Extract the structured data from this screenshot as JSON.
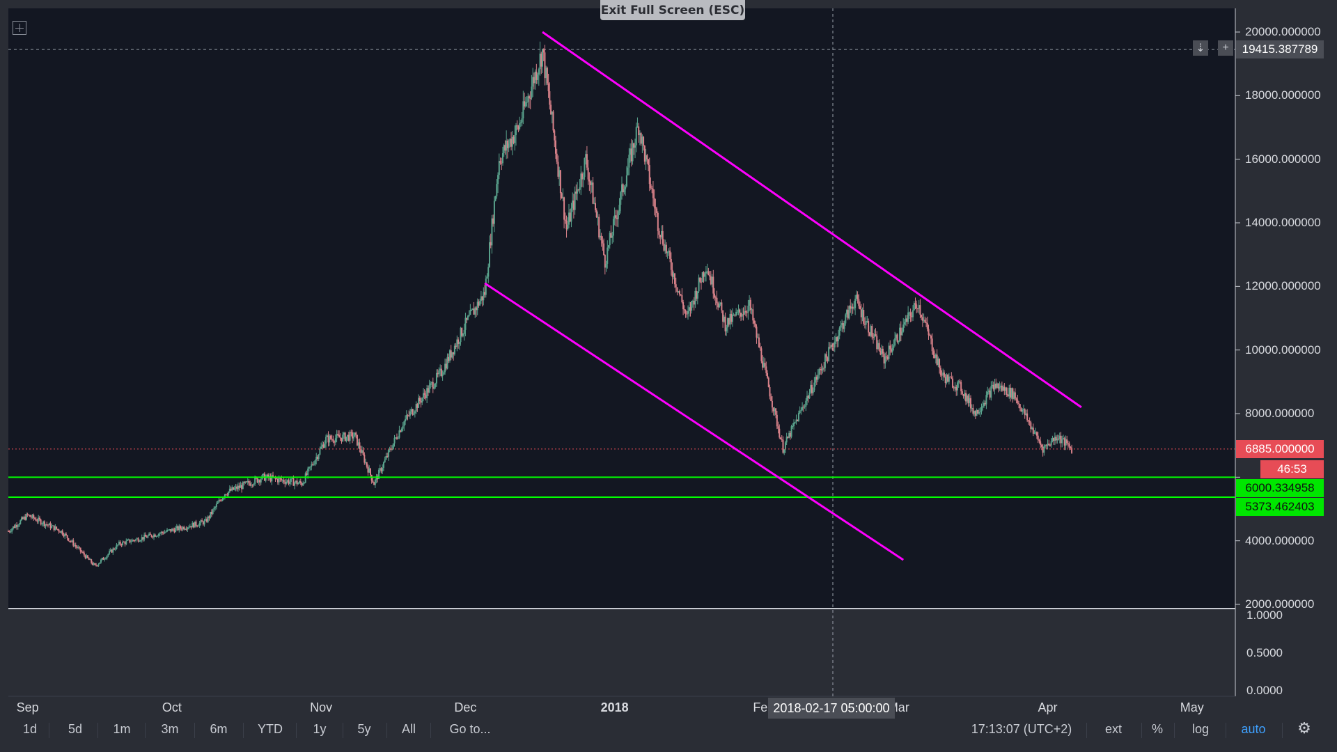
{
  "window": {
    "exit_fullscreen": "Exit Full Screen (ESC)"
  },
  "y_axis": {
    "ticks": [
      "20000.000000",
      "18000.000000",
      "16000.000000",
      "14000.000000",
      "12000.000000",
      "10000.000000",
      "8000.000000",
      "6000.000000",
      "4000.000000",
      "2000.000000"
    ]
  },
  "indicator_axis": {
    "ticks": [
      "1.0000",
      "0.5000",
      "0.0000"
    ]
  },
  "x_axis": {
    "ticks": [
      "Sep",
      "Oct",
      "Nov",
      "Dec",
      "2018",
      "Feb",
      "Mar",
      "Apr",
      "May"
    ]
  },
  "crosshair": {
    "price": "19415.387789",
    "time": "2018-02-17 05:00:00"
  },
  "price_labels": {
    "last_price": "6885.000000",
    "countdown": "46:53",
    "support_upper": "6000.334958",
    "support_lower": "5373.462403"
  },
  "toolbar": {
    "ranges": [
      "1d",
      "5d",
      "1m",
      "3m",
      "6m",
      "YTD",
      "1y",
      "5y",
      "All"
    ],
    "goto": "Go to...",
    "clock": "17:13:07 (UTC+2)",
    "ext": "ext",
    "percent": "%",
    "log": "log",
    "auto": "auto"
  },
  "colors": {
    "background": "#131722",
    "up_candle": "#5aa38d",
    "down_candle": "#d9828a",
    "channel_line": "#ff00ff",
    "support_line": "#00ff00",
    "last_price_bg": "#e74c56",
    "support_label_bg": "#00e600",
    "active_toolbar": "#3ea0ff"
  },
  "chart_data": {
    "type": "candlestick",
    "x_range": [
      "2017-08-28",
      "2018-05-10"
    ],
    "y_range": [
      2000,
      20000
    ],
    "close_path": [
      [
        "2017-08-28",
        4300
      ],
      [
        "2017-09-01",
        4800
      ],
      [
        "2017-09-08",
        4300
      ],
      [
        "2017-09-15",
        3200
      ],
      [
        "2017-09-20",
        3900
      ],
      [
        "2017-09-30",
        4300
      ],
      [
        "2017-10-08",
        4600
      ],
      [
        "2017-10-12",
        5500
      ],
      [
        "2017-10-20",
        6000
      ],
      [
        "2017-10-28",
        5800
      ],
      [
        "2017-11-02",
        7200
      ],
      [
        "2017-11-08",
        7300
      ],
      [
        "2017-11-12",
        5800
      ],
      [
        "2017-11-18",
        7700
      ],
      [
        "2017-11-26",
        9300
      ],
      [
        "2017-12-01",
        10800
      ],
      [
        "2017-12-05",
        11800
      ],
      [
        "2017-12-08",
        16000
      ],
      [
        "2017-12-12",
        17000
      ],
      [
        "2017-12-17",
        19400
      ],
      [
        "2017-12-22",
        13800
      ],
      [
        "2017-12-26",
        16000
      ],
      [
        "2017-12-30",
        12800
      ],
      [
        "2018-01-06",
        17100
      ],
      [
        "2018-01-10",
        14000
      ],
      [
        "2018-01-16",
        11000
      ],
      [
        "2018-01-20",
        12700
      ],
      [
        "2018-01-24",
        10800
      ],
      [
        "2018-01-29",
        11400
      ],
      [
        "2018-02-05",
        6900
      ],
      [
        "2018-02-10",
        8500
      ],
      [
        "2018-02-17",
        10700
      ],
      [
        "2018-02-20",
        11600
      ],
      [
        "2018-02-26",
        9700
      ],
      [
        "2018-03-05",
        11500
      ],
      [
        "2018-03-10",
        9200
      ],
      [
        "2018-03-14",
        8800
      ],
      [
        "2018-03-17",
        8000
      ],
      [
        "2018-03-21",
        8900
      ],
      [
        "2018-03-25",
        8600
      ],
      [
        "2018-03-31",
        6900
      ],
      [
        "2018-04-03",
        7300
      ],
      [
        "2018-04-06",
        6885
      ]
    ],
    "channel_upper": [
      [
        "2017-12-17",
        20000
      ],
      [
        "2018-04-08",
        8200
      ]
    ],
    "channel_lower": [
      [
        "2017-12-05",
        12100
      ],
      [
        "2018-03-02",
        3400
      ]
    ],
    "support_levels": [
      6000.334958,
      5373.462403
    ],
    "last_price": 6885.0
  }
}
